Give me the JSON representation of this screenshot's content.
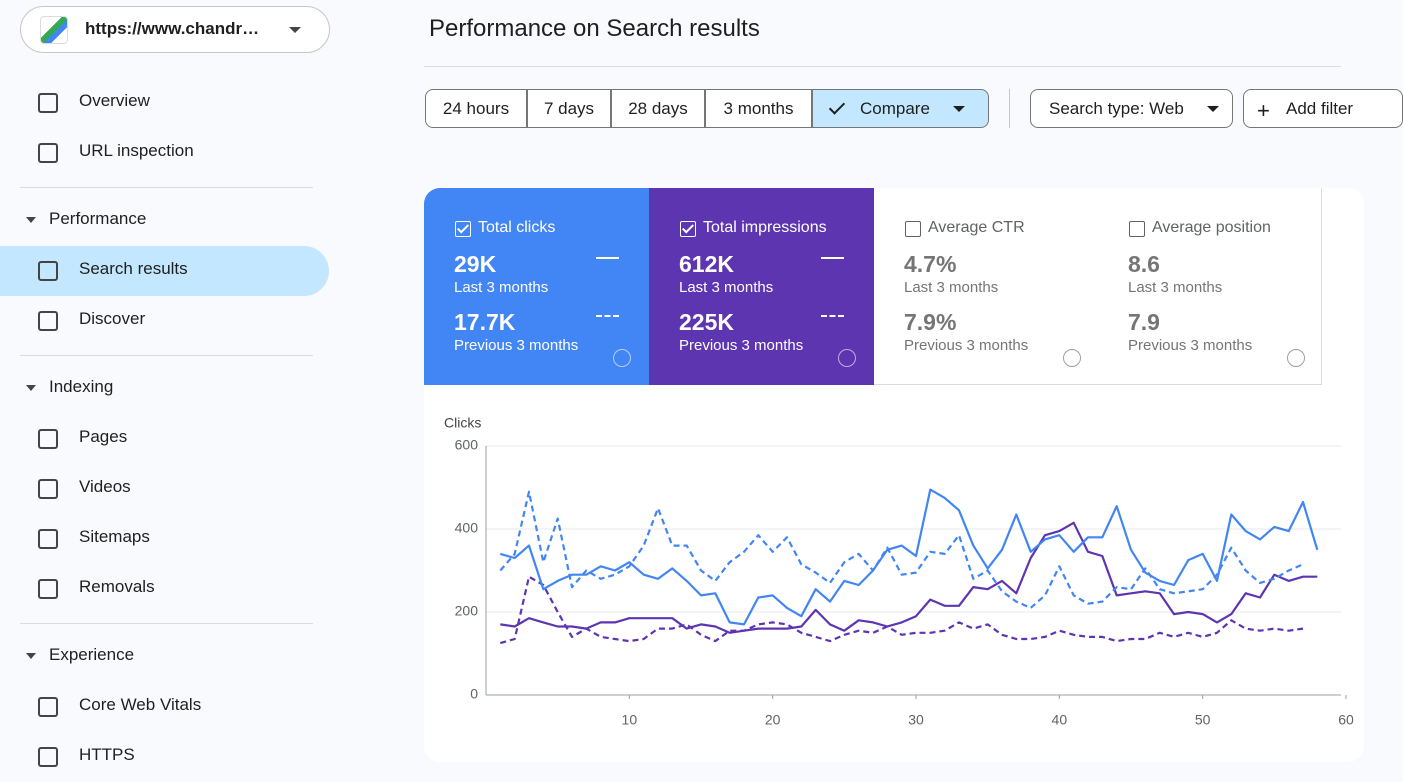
{
  "site": "https://www.chandr…",
  "nav": {
    "top": [
      "Overview",
      "URL inspection"
    ],
    "sections": [
      {
        "title": "Performance",
        "items": [
          "Search results",
          "Discover"
        ],
        "active": 0
      },
      {
        "title": "Indexing",
        "items": [
          "Pages",
          "Videos",
          "Sitemaps",
          "Removals"
        ]
      },
      {
        "title": "Experience",
        "items": [
          "Core Web Vitals",
          "HTTPS"
        ]
      }
    ]
  },
  "header": {
    "title": "Performance on Search results"
  },
  "filters": {
    "ranges": [
      "24 hours",
      "7 days",
      "28 days",
      "3 months"
    ],
    "compare": "Compare",
    "search_type": "Search type: Web",
    "add_filter": "Add filter"
  },
  "cards": [
    {
      "label": "Total clicks",
      "current": "29K",
      "current_period": "Last 3 months",
      "previous": "17.7K",
      "previous_period": "Previous 3 months",
      "checked": true,
      "color": "#4285f4"
    },
    {
      "label": "Total impressions",
      "current": "612K",
      "current_period": "Last 3 months",
      "previous": "225K",
      "previous_period": "Previous 3 months",
      "checked": true,
      "color": "#5e35b1"
    },
    {
      "label": "Average CTR",
      "current": "4.7%",
      "current_period": "Last 3 months",
      "previous": "7.9%",
      "previous_period": "Previous 3 months",
      "checked": false
    },
    {
      "label": "Average position",
      "current": "8.6",
      "current_period": "Last 3 months",
      "previous": "7.9",
      "previous_period": "Previous 3 months",
      "checked": false
    }
  ],
  "chart_data": {
    "type": "line",
    "y_label": "Clicks",
    "x": [
      1,
      2,
      3,
      4,
      5,
      6,
      7,
      8,
      9,
      10,
      11,
      12,
      13,
      14,
      15,
      16,
      17,
      18,
      19,
      20,
      21,
      22,
      23,
      24,
      25,
      26,
      27,
      28,
      29,
      30,
      31,
      32,
      33,
      34,
      35,
      36,
      37,
      38,
      39,
      40,
      41,
      42,
      43,
      44,
      45,
      46,
      47,
      48,
      49,
      50,
      51,
      52,
      53,
      54,
      55,
      56,
      57,
      58
    ],
    "xlim": [
      0,
      60
    ],
    "xticks": [
      10,
      20,
      30,
      40,
      50,
      60
    ],
    "ylim": [
      0,
      600
    ],
    "yticks": [
      0,
      200,
      400,
      600
    ],
    "grid": true,
    "series": [
      {
        "color": "#5e35b1",
        "style": "dashed",
        "values": [
          125,
          135,
          285,
          265,
          200,
          140,
          160,
          140,
          135,
          130,
          135,
          160,
          160,
          170,
          145,
          130,
          155,
          155,
          170,
          175,
          170,
          150,
          140,
          130,
          145,
          155,
          150,
          165,
          145,
          150,
          150,
          155,
          175,
          160,
          170,
          145,
          135,
          135,
          140,
          155,
          145,
          140,
          140,
          130,
          135,
          135,
          150,
          140,
          150,
          140,
          150,
          180,
          160,
          155,
          160,
          155,
          160,
          null
        ]
      },
      {
        "color": "#5e35b1",
        "style": "solid",
        "values": [
          170,
          165,
          185,
          175,
          165,
          165,
          160,
          175,
          175,
          185,
          185,
          185,
          185,
          160,
          170,
          165,
          150,
          155,
          160,
          160,
          160,
          165,
          205,
          170,
          155,
          180,
          175,
          165,
          175,
          190,
          230,
          215,
          215,
          260,
          255,
          275,
          245,
          330,
          385,
          395,
          415,
          345,
          335,
          240,
          245,
          250,
          245,
          195,
          200,
          195,
          175,
          195,
          245,
          235,
          290,
          275,
          285,
          285
        ]
      },
      {
        "color": "#4285f4",
        "style": "dashed",
        "values": [
          300,
          340,
          490,
          320,
          425,
          260,
          300,
          280,
          290,
          310,
          360,
          450,
          360,
          360,
          300,
          275,
          320,
          345,
          385,
          345,
          380,
          315,
          295,
          270,
          320,
          340,
          300,
          355,
          290,
          295,
          345,
          340,
          385,
          280,
          300,
          250,
          225,
          210,
          240,
          310,
          240,
          220,
          225,
          260,
          255,
          305,
          255,
          245,
          250,
          255,
          290,
          355,
          300,
          270,
          280,
          300,
          315,
          null
        ]
      },
      {
        "color": "#4285f4",
        "style": "solid",
        "values": [
          340,
          330,
          360,
          255,
          275,
          290,
          290,
          310,
          300,
          320,
          290,
          280,
          305,
          275,
          240,
          245,
          175,
          170,
          235,
          240,
          210,
          190,
          255,
          225,
          275,
          265,
          300,
          350,
          360,
          335,
          495,
          475,
          445,
          360,
          305,
          350,
          435,
          345,
          375,
          385,
          345,
          380,
          380,
          455,
          350,
          295,
          275,
          265,
          325,
          340,
          275,
          435,
          395,
          375,
          405,
          395,
          465,
          350
        ]
      }
    ]
  }
}
